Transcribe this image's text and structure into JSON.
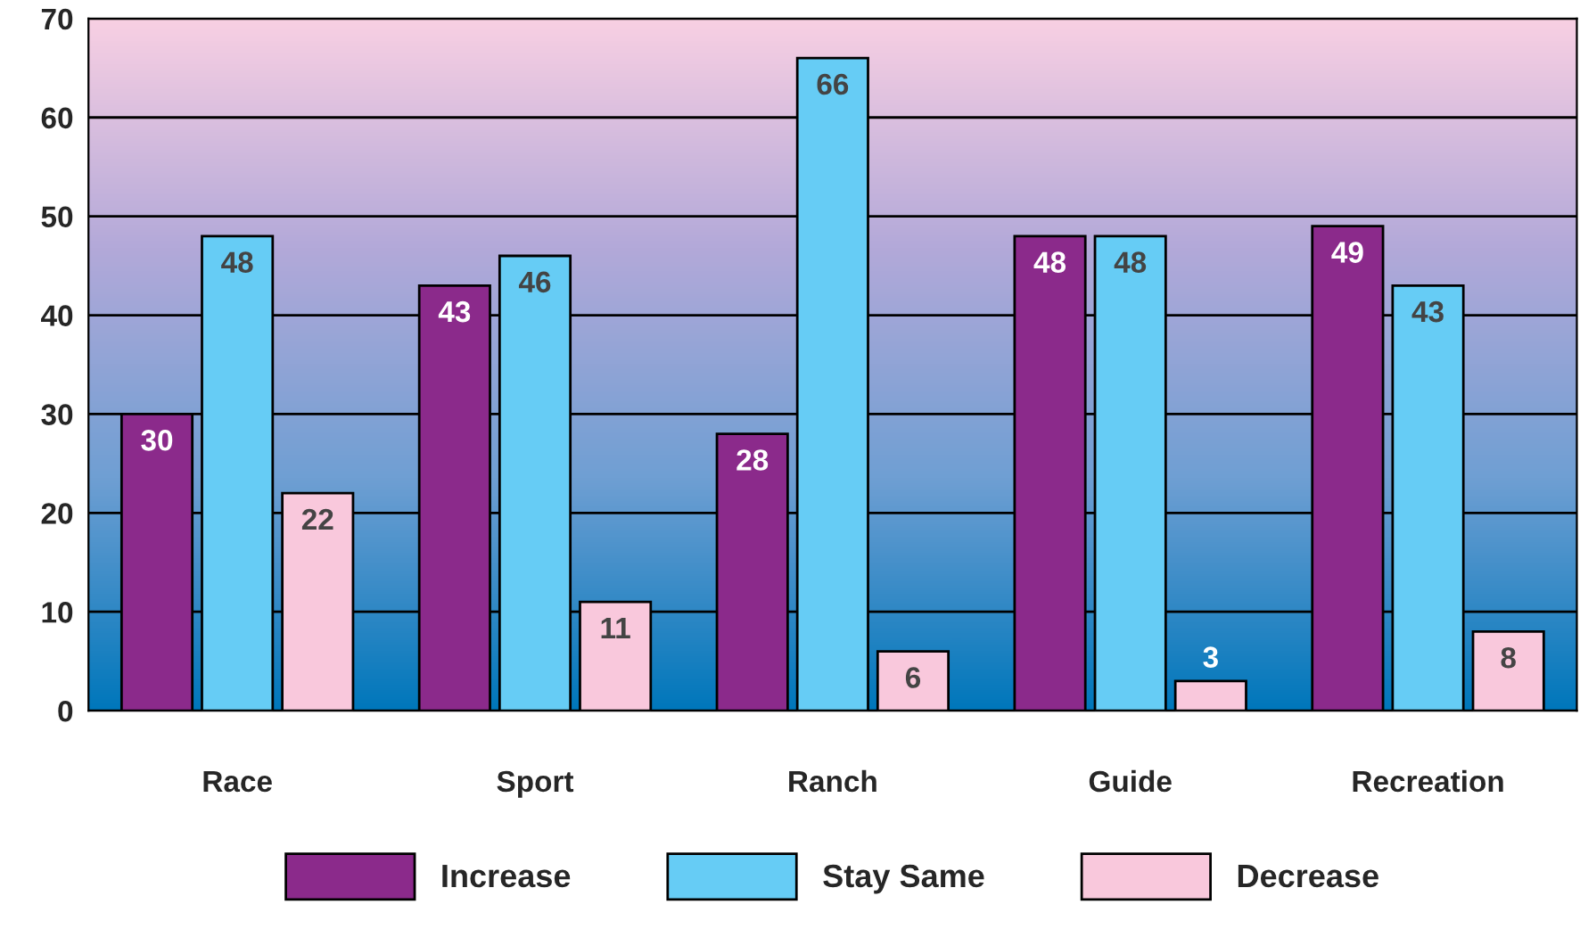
{
  "chart_data": {
    "type": "bar",
    "categories": [
      "Race",
      "Sport",
      "Ranch",
      "Guide",
      "Recreation"
    ],
    "series": [
      {
        "name": "Increase",
        "color": "#8b2a8b",
        "values": [
          30,
          43,
          28,
          48,
          49
        ]
      },
      {
        "name": "Stay Same",
        "color": "#66ccf5",
        "values": [
          48,
          46,
          66,
          48,
          43
        ]
      },
      {
        "name": "Decrease",
        "color": "#f9c8dc",
        "values": [
          22,
          11,
          6,
          3,
          8
        ]
      }
    ],
    "ylim": [
      0,
      70
    ],
    "yticks": [
      0,
      10,
      20,
      30,
      40,
      50,
      60,
      70
    ],
    "grid": "y",
    "legend": "bottom",
    "data_labels": true
  }
}
